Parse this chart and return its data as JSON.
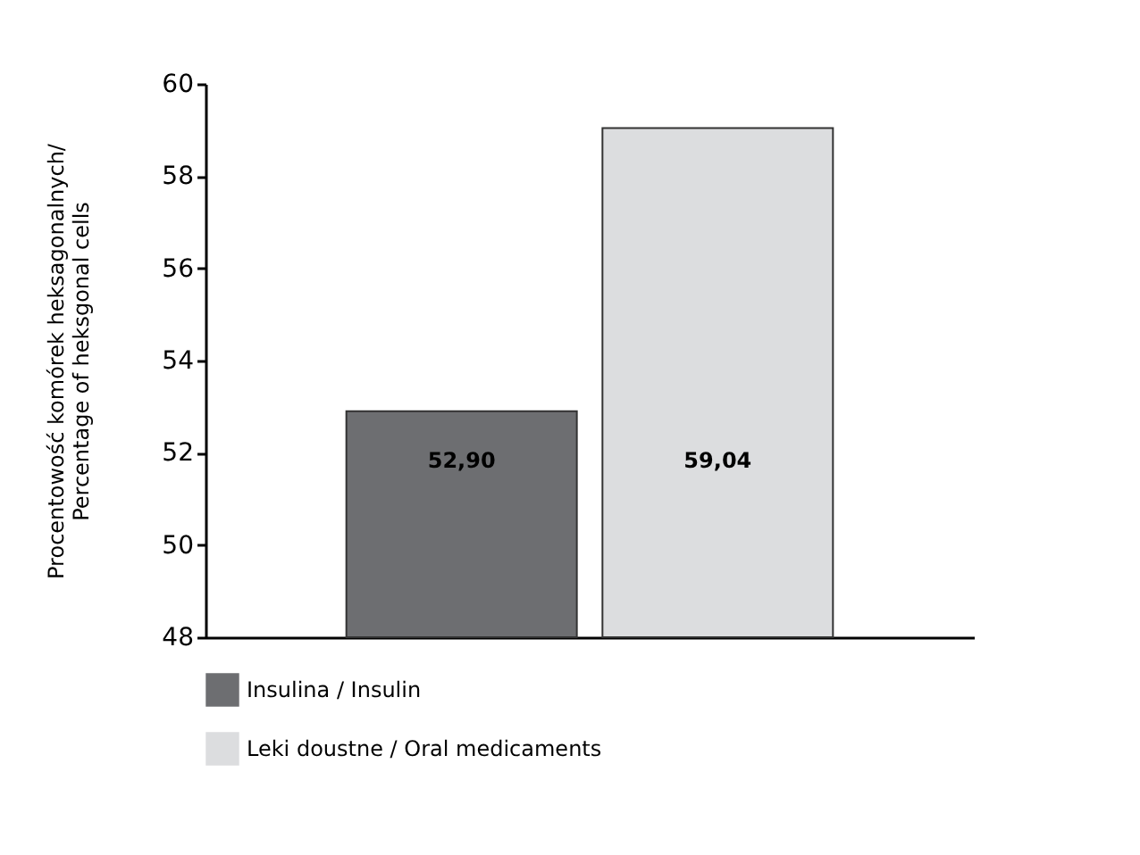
{
  "chart_data": {
    "type": "bar",
    "ylabel": "Procentowość komórek heksagonalnych/\nPercentage of heksgonal cells",
    "categories": [
      null,
      null
    ],
    "series": [
      {
        "name": "Insulina / Insulin",
        "color": "#6d6e71",
        "values": [
          52.9,
          null
        ],
        "value_labels": [
          "52,90",
          null
        ]
      },
      {
        "name": "Leki doustne / Oral medicaments",
        "color": "#dcdddf",
        "values": [
          null,
          59.04
        ],
        "value_labels": [
          null,
          "59,04"
        ]
      }
    ],
    "ylim": [
      48,
      60
    ],
    "yticks": [
      48,
      50,
      52,
      54,
      56,
      58,
      60
    ],
    "grid": false,
    "legend": "bottom",
    "tick_labels": "y"
  }
}
